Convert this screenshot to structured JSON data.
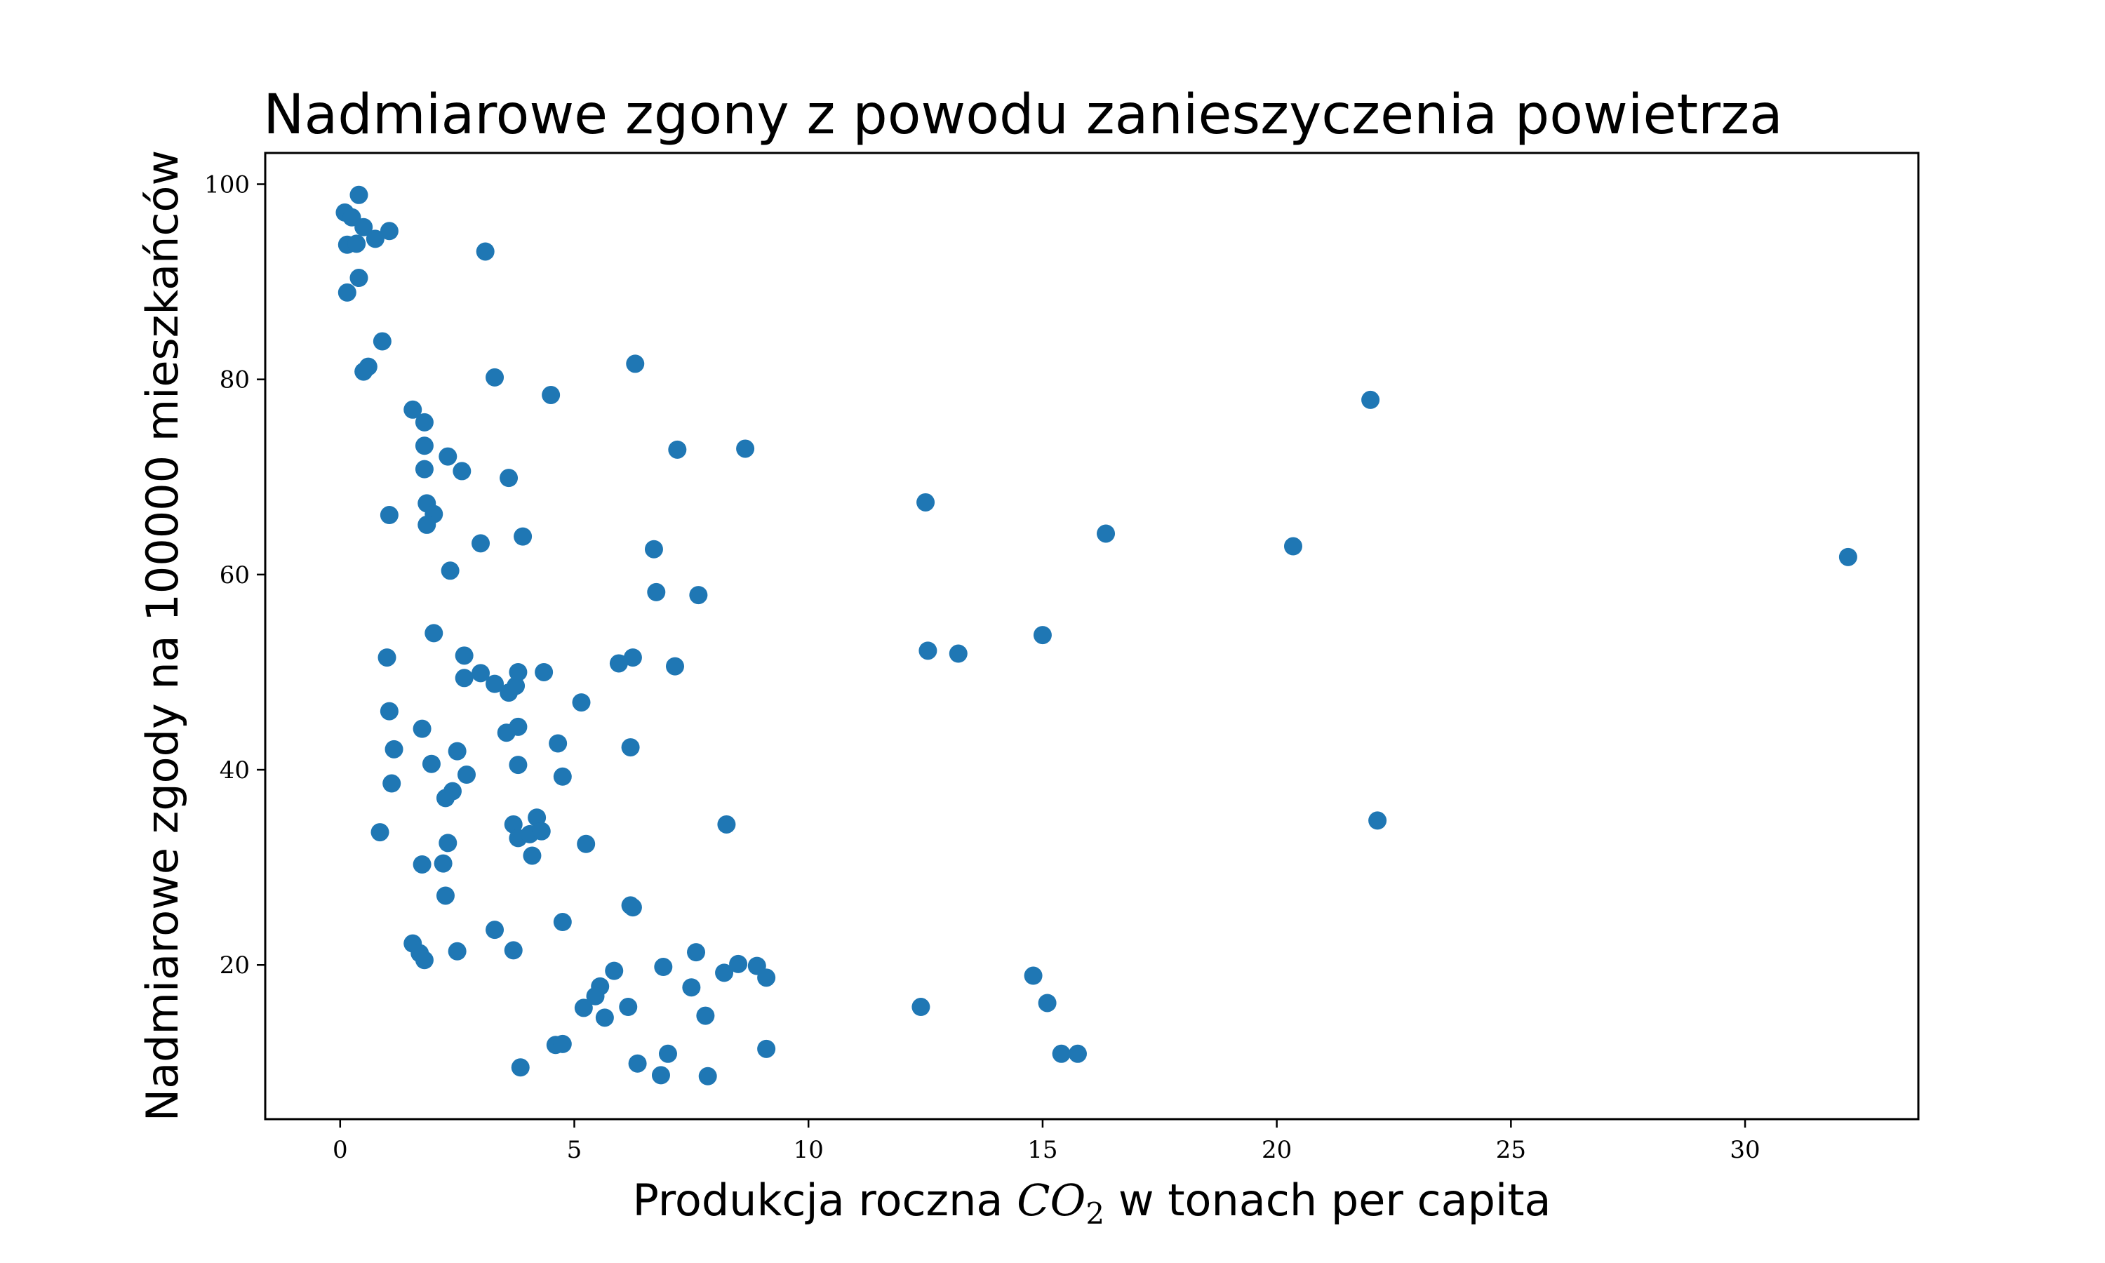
{
  "chart_data": {
    "type": "scatter",
    "title": "Nadmiarowe zgony z powodu zanieszyczenia powietrza",
    "xlabel": {
      "before": "Produkcja roczna ",
      "var": "CO",
      "sub": "2",
      "after": " w tonach per capita"
    },
    "ylabel": "Nadmiarowe zgody na 100000 mieszkańców",
    "xlim": [
      -1.6,
      33.7
    ],
    "ylim": [
      4.2,
      103.2
    ],
    "xticks": [
      0,
      5,
      10,
      15,
      20,
      25,
      30
    ],
    "yticks": [
      20,
      40,
      60,
      80,
      100
    ],
    "grid": false,
    "legend": false,
    "marker_color": "#1f77b4",
    "points": [
      [
        0.1,
        97.1
      ],
      [
        0.25,
        96.6
      ],
      [
        0.4,
        98.9
      ],
      [
        0.5,
        95.6
      ],
      [
        0.15,
        93.8
      ],
      [
        0.35,
        93.9
      ],
      [
        0.75,
        94.4
      ],
      [
        1.05,
        95.2
      ],
      [
        0.4,
        90.4
      ],
      [
        0.15,
        88.9
      ],
      [
        3.1,
        93.1
      ],
      [
        0.9,
        83.9
      ],
      [
        0.6,
        81.3
      ],
      [
        0.5,
        80.8
      ],
      [
        3.3,
        80.2
      ],
      [
        4.5,
        78.4
      ],
      [
        6.3,
        81.6
      ],
      [
        22.0,
        77.9
      ],
      [
        1.55,
        76.9
      ],
      [
        1.8,
        75.6
      ],
      [
        1.8,
        73.2
      ],
      [
        2.3,
        72.1
      ],
      [
        1.8,
        70.8
      ],
      [
        2.6,
        70.6
      ],
      [
        3.6,
        69.9
      ],
      [
        7.2,
        72.8
      ],
      [
        8.65,
        72.9
      ],
      [
        12.5,
        67.4
      ],
      [
        1.05,
        66.1
      ],
      [
        1.85,
        67.3
      ],
      [
        2.0,
        66.2
      ],
      [
        1.85,
        65.1
      ],
      [
        3.0,
        63.2
      ],
      [
        3.9,
        63.9
      ],
      [
        6.7,
        62.6
      ],
      [
        16.35,
        64.2
      ],
      [
        20.35,
        62.9
      ],
      [
        32.2,
        61.8
      ],
      [
        2.35,
        60.4
      ],
      [
        6.75,
        58.2
      ],
      [
        7.65,
        57.9
      ],
      [
        2.0,
        54.0
      ],
      [
        15.0,
        53.8
      ],
      [
        1.0,
        51.5
      ],
      [
        2.65,
        51.7
      ],
      [
        12.55,
        52.2
      ],
      [
        13.2,
        51.9
      ],
      [
        6.25,
        51.5
      ],
      [
        5.95,
        50.9
      ],
      [
        7.15,
        50.6
      ],
      [
        2.65,
        49.4
      ],
      [
        3.0,
        49.9
      ],
      [
        3.3,
        48.8
      ],
      [
        3.6,
        47.9
      ],
      [
        3.75,
        48.6
      ],
      [
        3.8,
        50.0
      ],
      [
        4.35,
        50.0
      ],
      [
        5.15,
        46.9
      ],
      [
        1.05,
        46.0
      ],
      [
        1.75,
        44.2
      ],
      [
        3.55,
        43.8
      ],
      [
        3.8,
        44.4
      ],
      [
        4.65,
        42.7
      ],
      [
        6.2,
        42.3
      ],
      [
        1.15,
        42.1
      ],
      [
        2.5,
        41.9
      ],
      [
        1.95,
        40.6
      ],
      [
        3.8,
        40.5
      ],
      [
        2.7,
        39.5
      ],
      [
        4.75,
        39.3
      ],
      [
        1.1,
        38.6
      ],
      [
        2.4,
        37.8
      ],
      [
        2.25,
        37.1
      ],
      [
        8.25,
        34.4
      ],
      [
        22.15,
        34.8
      ],
      [
        0.85,
        33.6
      ],
      [
        3.7,
        34.4
      ],
      [
        3.8,
        33.0
      ],
      [
        4.05,
        33.4
      ],
      [
        4.2,
        35.1
      ],
      [
        4.3,
        33.7
      ],
      [
        5.25,
        32.4
      ],
      [
        2.3,
        32.5
      ],
      [
        1.75,
        30.3
      ],
      [
        2.2,
        30.4
      ],
      [
        4.1,
        31.2
      ],
      [
        2.25,
        27.1
      ],
      [
        6.2,
        26.1
      ],
      [
        6.25,
        25.9
      ],
      [
        4.75,
        24.4
      ],
      [
        3.3,
        23.6
      ],
      [
        1.55,
        22.2
      ],
      [
        1.7,
        21.2
      ],
      [
        1.8,
        20.5
      ],
      [
        2.5,
        21.4
      ],
      [
        3.7,
        21.5
      ],
      [
        7.6,
        21.3
      ],
      [
        5.85,
        19.4
      ],
      [
        6.9,
        19.8
      ],
      [
        8.2,
        19.2
      ],
      [
        8.5,
        20.1
      ],
      [
        8.9,
        19.9
      ],
      [
        9.1,
        18.7
      ],
      [
        14.8,
        18.9
      ],
      [
        5.55,
        17.8
      ],
      [
        5.45,
        16.8
      ],
      [
        7.5,
        17.7
      ],
      [
        5.2,
        15.6
      ],
      [
        6.15,
        15.7
      ],
      [
        12.4,
        15.7
      ],
      [
        15.1,
        16.1
      ],
      [
        5.65,
        14.6
      ],
      [
        7.8,
        14.8
      ],
      [
        4.6,
        11.8
      ],
      [
        4.75,
        11.9
      ],
      [
        7.0,
        10.9
      ],
      [
        9.1,
        11.4
      ],
      [
        15.4,
        10.9
      ],
      [
        15.75,
        10.9
      ],
      [
        3.85,
        9.5
      ],
      [
        6.35,
        9.9
      ],
      [
        6.85,
        8.7
      ],
      [
        7.85,
        8.6
      ]
    ]
  }
}
